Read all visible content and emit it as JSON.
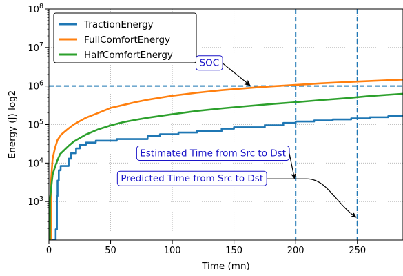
{
  "chart_data": {
    "type": "line",
    "title": "",
    "xlabel": "Time (mn)",
    "ylabel": "Energy (J) log2",
    "xlim": [
      0,
      287
    ],
    "ylim": [
      100,
      100000000
    ],
    "yscale": "log",
    "grid": true,
    "legend_position": "top-left",
    "x_ticks": [
      0,
      50,
      100,
      150,
      200,
      250
    ],
    "x_tick_labels": [
      "0",
      "50",
      "100",
      "150",
      "200",
      "250"
    ],
    "y_ticks": [
      1000,
      10000,
      100000,
      1000000,
      10000000,
      100000000
    ],
    "y_tick_labels": [
      {
        "base": "10",
        "exp": "3"
      },
      {
        "base": "10",
        "exp": "4"
      },
      {
        "base": "10",
        "exp": "5"
      },
      {
        "base": "10",
        "exp": "6"
      },
      {
        "base": "10",
        "exp": "7"
      },
      {
        "base": "10",
        "exp": "8"
      }
    ],
    "series": [
      {
        "name": "TractionEnergy",
        "color": "#1f77b4",
        "step": true,
        "points": [
          [
            0.3,
            100
          ],
          [
            5.5,
            100
          ],
          [
            5.5,
            190
          ],
          [
            6.5,
            190
          ],
          [
            6.5,
            1400
          ],
          [
            7,
            1400
          ],
          [
            7,
            3500
          ],
          [
            8,
            3500
          ],
          [
            8,
            6500
          ],
          [
            9.5,
            6500
          ],
          [
            9.5,
            8400
          ],
          [
            16,
            8400
          ],
          [
            16,
            13000
          ],
          [
            18,
            13000
          ],
          [
            18,
            18000
          ],
          [
            22,
            18000
          ],
          [
            22,
            24000
          ],
          [
            25,
            24000
          ],
          [
            25,
            30000
          ],
          [
            30,
            30000
          ],
          [
            30,
            34000
          ],
          [
            38,
            34000
          ],
          [
            38,
            38000
          ],
          [
            55,
            38000
          ],
          [
            55,
            42000
          ],
          [
            80,
            42000
          ],
          [
            80,
            50000
          ],
          [
            90,
            50000
          ],
          [
            90,
            56000
          ],
          [
            105,
            56000
          ],
          [
            105,
            62000
          ],
          [
            120,
            62000
          ],
          [
            120,
            68000
          ],
          [
            140,
            68000
          ],
          [
            140,
            78000
          ],
          [
            150,
            78000
          ],
          [
            150,
            85000
          ],
          [
            175,
            85000
          ],
          [
            175,
            96000
          ],
          [
            190,
            96000
          ],
          [
            190,
            110000
          ],
          [
            200,
            110000
          ],
          [
            200,
            120000
          ],
          [
            215,
            120000
          ],
          [
            215,
            128000
          ],
          [
            230,
            128000
          ],
          [
            230,
            136000
          ],
          [
            245,
            136000
          ],
          [
            245,
            145000
          ],
          [
            260,
            145000
          ],
          [
            260,
            155000
          ],
          [
            275,
            155000
          ],
          [
            275,
            165000
          ],
          [
            287,
            170000
          ]
        ]
      },
      {
        "name": "FullComfortEnergy",
        "color": "#ff7f0e",
        "step": false,
        "points": [
          [
            1.5,
            100
          ],
          [
            1.6,
            3000
          ],
          [
            3,
            13000
          ],
          [
            5,
            25000
          ],
          [
            7,
            40000
          ],
          [
            10,
            55000
          ],
          [
            15,
            75000
          ],
          [
            20,
            100000
          ],
          [
            30,
            150000
          ],
          [
            40,
            200000
          ],
          [
            50,
            270000
          ],
          [
            60,
            320000
          ],
          [
            70,
            380000
          ],
          [
            80,
            440000
          ],
          [
            100,
            560000
          ],
          [
            120,
            670000
          ],
          [
            140,
            780000
          ],
          [
            160,
            880000
          ],
          [
            180,
            980000
          ],
          [
            200,
            1070000
          ],
          [
            220,
            1170000
          ],
          [
            240,
            1260000
          ],
          [
            260,
            1350000
          ],
          [
            287,
            1470000
          ]
        ]
      },
      {
        "name": "HalfComfortEnergy",
        "color": "#2ca02c",
        "step": false,
        "points": [
          [
            0.8,
            100
          ],
          [
            0.9,
            1200
          ],
          [
            3,
            5000
          ],
          [
            5,
            8000
          ],
          [
            7,
            12000
          ],
          [
            9,
            17000
          ],
          [
            12,
            21000
          ],
          [
            16,
            28000
          ],
          [
            20,
            36000
          ],
          [
            30,
            55000
          ],
          [
            40,
            75000
          ],
          [
            50,
            95000
          ],
          [
            60,
            115000
          ],
          [
            70,
            132000
          ],
          [
            80,
            150000
          ],
          [
            100,
            185000
          ],
          [
            120,
            225000
          ],
          [
            140,
            262000
          ],
          [
            160,
            300000
          ],
          [
            180,
            340000
          ],
          [
            200,
            380000
          ],
          [
            220,
            430000
          ],
          [
            240,
            480000
          ],
          [
            260,
            550000
          ],
          [
            287,
            630000
          ]
        ]
      }
    ],
    "reference_lines": [
      {
        "orientation": "horizontal",
        "value": 1000000,
        "color": "#1f77b4",
        "style": "dashed"
      },
      {
        "orientation": "vertical",
        "value": 200,
        "color": "#1f77b4",
        "style": "dashed"
      },
      {
        "orientation": "vertical",
        "value": 250,
        "color": "#1f77b4",
        "style": "dashed"
      }
    ],
    "annotations": [
      {
        "text": "SOC",
        "target": [
          163,
          1000000
        ],
        "box_at": [
          130,
          3300000
        ]
      },
      {
        "text": "Estimated Time from Src to Dst",
        "target": [
          199,
          4000
        ],
        "box_at": [
          133,
          15000
        ]
      },
      {
        "text": "Predicted Time from Src to Dst",
        "target": [
          249,
          390
        ],
        "box_at": [
          116,
          3300
        ]
      }
    ]
  }
}
